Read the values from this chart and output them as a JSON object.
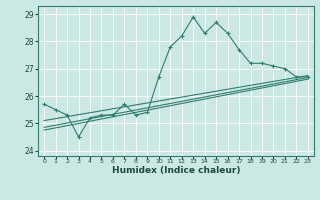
{
  "xlabel": "Humidex (Indice chaleur)",
  "bg_color": "#cce8e4",
  "grid_color": "#ffffff",
  "line_color": "#2e7d6e",
  "xlim": [
    -0.5,
    23.5
  ],
  "ylim": [
    23.8,
    29.3
  ],
  "yticks": [
    24,
    25,
    26,
    27,
    28,
    29
  ],
  "xticks": [
    0,
    1,
    2,
    3,
    4,
    5,
    6,
    7,
    8,
    9,
    10,
    11,
    12,
    13,
    14,
    15,
    16,
    17,
    18,
    19,
    20,
    21,
    22,
    23
  ],
  "series1_x": [
    0,
    1,
    2,
    3,
    4,
    5,
    6,
    7,
    8,
    9,
    10,
    11,
    12,
    13,
    14,
    15,
    16,
    17,
    18,
    19,
    20,
    21,
    22,
    23
  ],
  "series1_y": [
    25.7,
    25.5,
    25.3,
    24.5,
    25.2,
    25.3,
    25.3,
    25.7,
    25.3,
    25.4,
    26.7,
    27.8,
    28.2,
    28.9,
    28.3,
    28.7,
    28.3,
    27.7,
    27.2,
    27.2,
    27.1,
    27.0,
    26.7,
    26.7
  ],
  "series2_x": [
    0,
    23
  ],
  "series2_y": [
    25.1,
    26.75
  ],
  "series3_x": [
    0,
    23
  ],
  "series3_y": [
    24.85,
    26.68
  ],
  "series4_x": [
    0,
    23
  ],
  "series4_y": [
    24.75,
    26.62
  ]
}
